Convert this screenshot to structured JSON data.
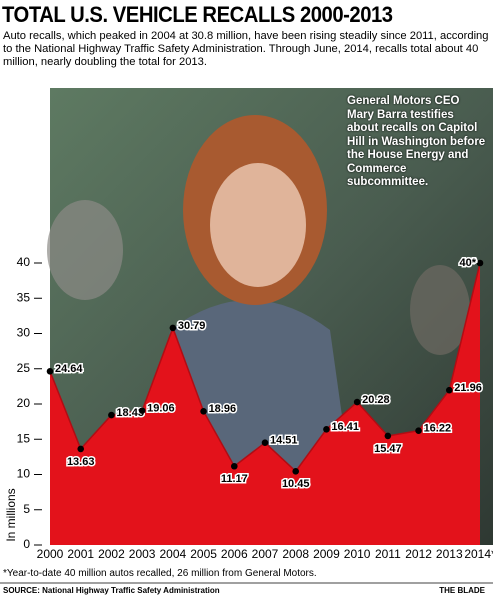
{
  "chart_data": {
    "type": "area",
    "title": "TOTAL U.S. VEHICLE RECALLS 2000-2013",
    "subtitle": "Auto recalls, which peaked in 2004 at 30.8 million, have been rising steadily since 2011, according to the National Highway Traffic Safety Administration. Through June, 2014, recalls total about 40 million, nearly doubling the total for 2013.",
    "annotation": "General Motors CEO Mary Barra testifies about recalls on Capitol Hill in Washington before the House Energy and Commerce subcommittee.",
    "y_label": "In millions",
    "categories": [
      "2000",
      "2001",
      "2002",
      "2003",
      "2004",
      "2005",
      "2006",
      "2007",
      "2008",
      "2009",
      "2010",
      "2011",
      "2012",
      "2013",
      "2014*"
    ],
    "values": [
      24.64,
      13.63,
      18.43,
      19.06,
      30.79,
      18.96,
      11.17,
      14.51,
      10.45,
      16.41,
      20.28,
      15.47,
      16.22,
      21.96,
      40
    ],
    "value_labels": [
      "24.64",
      "13.63",
      "18.43",
      "19.06",
      "30.79",
      "18.96",
      "11.17",
      "14.51",
      "10.45",
      "16.41",
      "20.28",
      "15.47",
      "16.22",
      "21.96",
      "40*"
    ],
    "color": "#e3121b",
    "ylim": [
      0,
      40
    ],
    "yticks": [
      0,
      5,
      10,
      15,
      20,
      25,
      30,
      35,
      40
    ],
    "footnote": "*Year-to-date 40 million autos recalled, 26 million from General Motors.",
    "source": "SOURCE: National Highway Traffic Safety Administration",
    "credit": "THE BLADE"
  }
}
